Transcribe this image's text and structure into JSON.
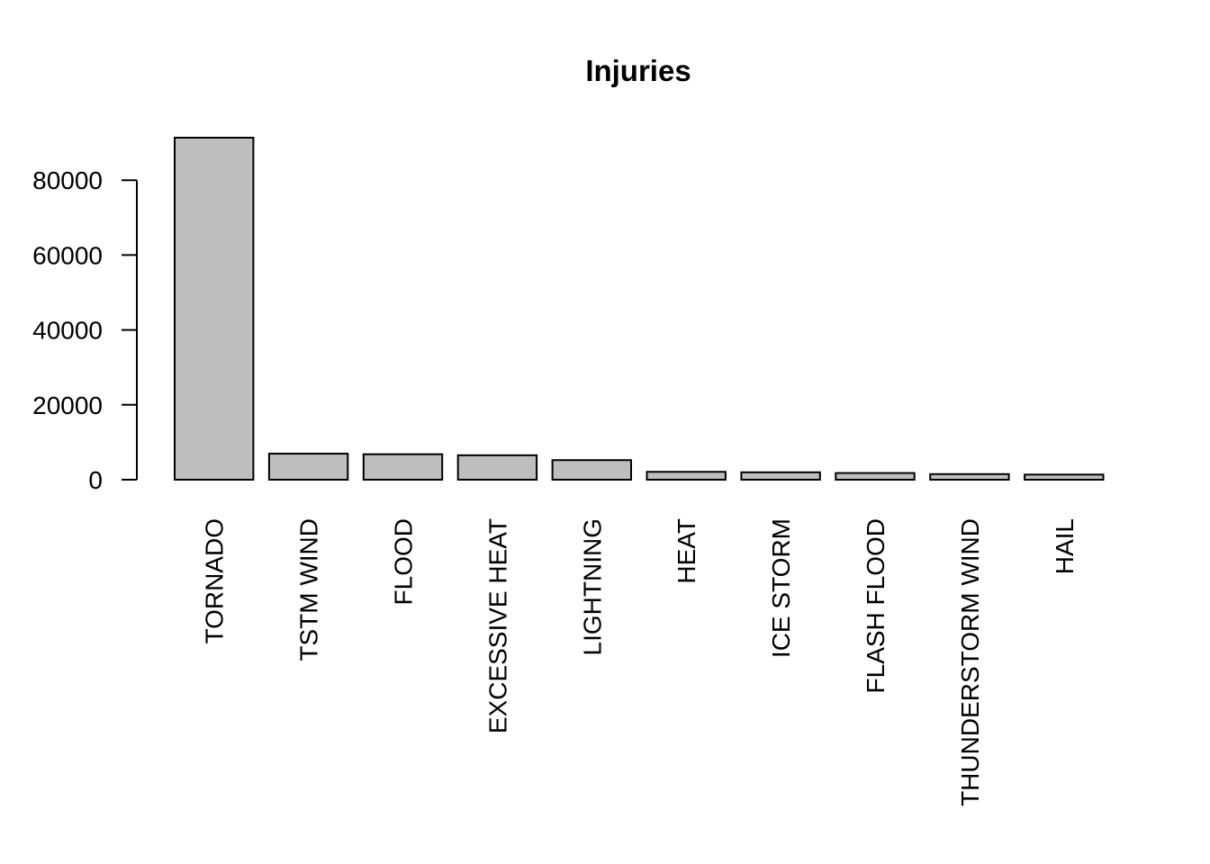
{
  "chart_data": {
    "type": "bar",
    "title": "Injuries",
    "xlabel": "",
    "ylabel": "",
    "categories": [
      "TORNADO",
      "TSTM WIND",
      "FLOOD",
      "EXCESSIVE HEAT",
      "LIGHTNING",
      "HEAT",
      "ICE STORM",
      "FLASH FLOOD",
      "THUNDERSTORM WIND",
      "HAIL"
    ],
    "values": [
      91346,
      6957,
      6789,
      6525,
      5230,
      2100,
      1975,
      1777,
      1488,
      1361
    ],
    "ylim": [
      0,
      91346
    ],
    "yticks": [
      0,
      20000,
      40000,
      60000,
      80000
    ],
    "bar_color": "#bebebe",
    "grid": false,
    "legend": "none"
  }
}
